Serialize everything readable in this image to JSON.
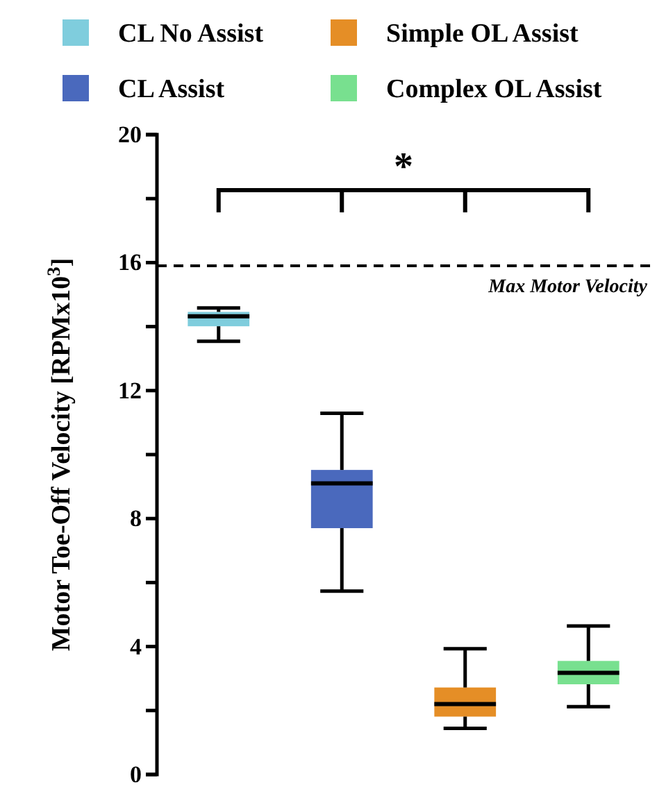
{
  "chart_data": {
    "type": "box",
    "ylabel": "Motor Toe-Off Velocity [RPMx10$^{3}$]",
    "categories": [
      null,
      null,
      null,
      null
    ],
    "ylim": [
      0,
      20
    ],
    "yticks": [
      0,
      {
        "value": 2,
        "label": null
      },
      4,
      {
        "value": 6,
        "label": null
      },
      8,
      {
        "value": 10,
        "label": null
      },
      12,
      {
        "value": 14,
        "label": null
      },
      16,
      {
        "value": 18,
        "label": null
      },
      20
    ],
    "legend": "top",
    "grid": false,
    "series": [
      {
        "name": "CL No Assist",
        "color": "#7fcddd",
        "boxes": [
          {
            "low": 13.54,
            "q1": 14.01,
            "median": 14.32,
            "q3": 14.46,
            "high": 14.58
          },
          null,
          null,
          null
        ]
      },
      {
        "name": "CL Assist",
        "color": "#4a69bd",
        "boxes": [
          null,
          {
            "low": 5.73,
            "q1": 7.7,
            "median": 9.1,
            "q3": 9.52,
            "high": 11.29
          },
          null,
          null
        ]
      },
      {
        "name": "Simple OL Assist",
        "color": "#e58e26",
        "boxes": [
          null,
          null,
          {
            "low": 1.44,
            "q1": 1.81,
            "median": 2.2,
            "q3": 2.72,
            "high": 3.93
          },
          null
        ]
      },
      {
        "name": "Complex OL Assist",
        "color": "#78e08f",
        "boxes": [
          null,
          null,
          null,
          {
            "low": 2.12,
            "q1": 2.82,
            "median": 3.18,
            "q3": 3.55,
            "high": 4.64
          }
        ]
      }
    ],
    "ref_lines": [
      {
        "axis": "y",
        "value": 15.9,
        "label": "Max Motor Velocity",
        "line_style": "dashed"
      }
    ],
    "annotations": [
      "*"
    ]
  }
}
